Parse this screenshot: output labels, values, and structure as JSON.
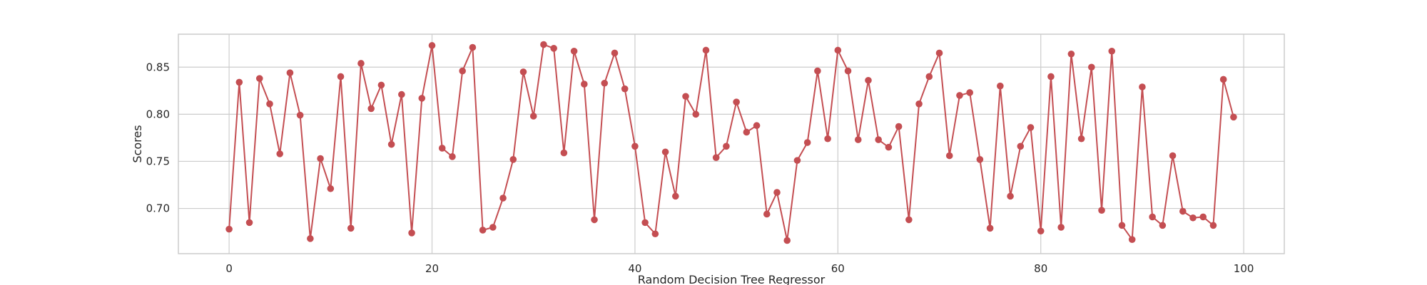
{
  "chart_data": {
    "type": "line",
    "title": "",
    "xlabel": "Random Decision Tree Regressor",
    "ylabel": "Scores",
    "xlim": [
      -5,
      104
    ],
    "ylim": [
      0.652,
      0.885
    ],
    "x_ticks": [
      0,
      20,
      40,
      60,
      80,
      100
    ],
    "y_ticks": [
      0.7,
      0.75,
      0.8,
      0.85
    ],
    "y_tick_labels": [
      "0.70",
      "0.75",
      "0.80",
      "0.85"
    ],
    "grid": true,
    "legend": "none",
    "series_color": "#c44e52",
    "series": [
      {
        "x": [
          0,
          1,
          2,
          3,
          4,
          5,
          6,
          7,
          8,
          9,
          10,
          11,
          12,
          13,
          14,
          15,
          16,
          17,
          18,
          19,
          20,
          21,
          22,
          23,
          24,
          25,
          26,
          27,
          28,
          29,
          30,
          31,
          32,
          33,
          34,
          35,
          36,
          37,
          38,
          39,
          40,
          41,
          42,
          43,
          44,
          45,
          46,
          47,
          48,
          49,
          50,
          51,
          52,
          53,
          54,
          55,
          56,
          57,
          58,
          59,
          60,
          61,
          62,
          63,
          64,
          65,
          66,
          67,
          68,
          69,
          70,
          71,
          72,
          73,
          74,
          75,
          76,
          77,
          78,
          79,
          80,
          81,
          82,
          83,
          84,
          85,
          86,
          87,
          88,
          89,
          90,
          91,
          92,
          93,
          94,
          95,
          96,
          97,
          98,
          99
        ],
        "values": [
          0.678,
          0.834,
          0.685,
          0.838,
          0.811,
          0.758,
          0.844,
          0.799,
          0.668,
          0.753,
          0.721,
          0.84,
          0.679,
          0.854,
          0.806,
          0.831,
          0.768,
          0.821,
          0.674,
          0.817,
          0.873,
          0.764,
          0.755,
          0.846,
          0.871,
          0.677,
          0.68,
          0.711,
          0.752,
          0.845,
          0.798,
          0.874,
          0.87,
          0.759,
          0.867,
          0.832,
          0.688,
          0.833,
          0.865,
          0.827,
          0.766,
          0.685,
          0.673,
          0.76,
          0.713,
          0.819,
          0.8,
          0.868,
          0.754,
          0.766,
          0.813,
          0.781,
          0.788,
          0.694,
          0.717,
          0.666,
          0.751,
          0.77,
          0.846,
          0.774,
          0.868,
          0.846,
          0.773,
          0.836,
          0.773,
          0.765,
          0.787,
          0.688,
          0.811,
          0.84,
          0.865,
          0.756,
          0.82,
          0.823,
          0.752,
          0.679,
          0.83,
          0.713,
          0.766,
          0.786,
          0.676,
          0.84,
          0.68,
          0.864,
          0.774,
          0.85,
          0.698,
          0.867,
          0.682,
          0.667,
          0.829,
          0.691,
          0.682,
          0.756,
          0.697,
          0.69,
          0.691,
          0.682,
          0.837,
          0.797
        ]
      }
    ]
  }
}
